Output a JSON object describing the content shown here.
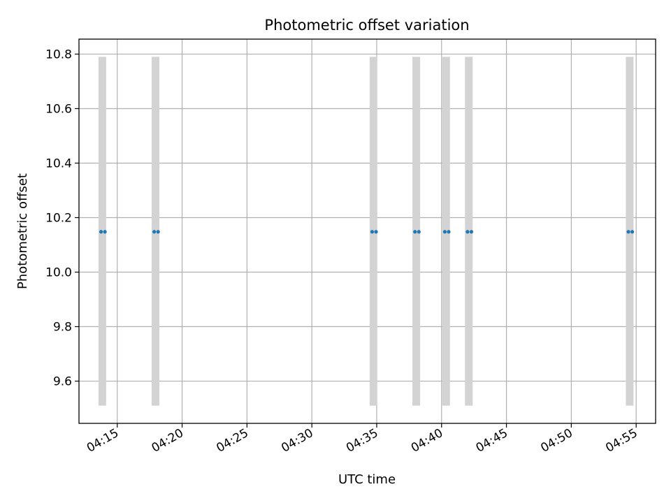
{
  "chart_data": {
    "type": "scatter",
    "title": "Photometric offset variation",
    "xlabel": "UTC time",
    "ylabel": "Photometric offset",
    "xlim": [
      "04:12:03",
      "04:56:30"
    ],
    "ylim": [
      9.445,
      10.855
    ],
    "x_ticks": [
      "04:15",
      "04:20",
      "04:25",
      "04:30",
      "04:35",
      "04:40",
      "04:45",
      "04:50",
      "04:55"
    ],
    "y_ticks": [
      "9.6",
      "9.8",
      "10.0",
      "10.2",
      "10.4",
      "10.6",
      "10.8"
    ],
    "grid": true,
    "bands": {
      "color": "#d3d3d3",
      "y_range": [
        9.51,
        10.79
      ],
      "x_centers": [
        "04:13:51",
        "04:17:57",
        "04:34:45",
        "04:38:03",
        "04:40:21",
        "04:42:06",
        "04:54:30"
      ]
    },
    "series": [
      {
        "color": "#1f77b4",
        "points": [
          {
            "x": "04:13:45",
            "y": 10.148
          },
          {
            "x": "04:14:03",
            "y": 10.148
          },
          {
            "x": "04:17:51",
            "y": 10.148
          },
          {
            "x": "04:18:09",
            "y": 10.148
          },
          {
            "x": "04:34:39",
            "y": 10.148
          },
          {
            "x": "04:34:57",
            "y": 10.148
          },
          {
            "x": "04:37:57",
            "y": 10.148
          },
          {
            "x": "04:38:15",
            "y": 10.148
          },
          {
            "x": "04:40:15",
            "y": 10.148
          },
          {
            "x": "04:40:33",
            "y": 10.148
          },
          {
            "x": "04:42:00",
            "y": 10.148
          },
          {
            "x": "04:42:18",
            "y": 10.148
          },
          {
            "x": "04:54:24",
            "y": 10.148
          },
          {
            "x": "04:54:42",
            "y": 10.148
          }
        ]
      }
    ]
  }
}
